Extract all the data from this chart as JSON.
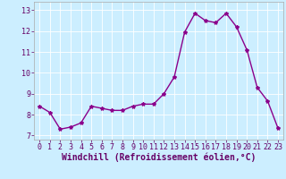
{
  "x": [
    0,
    1,
    2,
    3,
    4,
    5,
    6,
    7,
    8,
    9,
    10,
    11,
    12,
    13,
    14,
    15,
    16,
    17,
    18,
    19,
    20,
    21,
    22,
    23
  ],
  "y": [
    8.4,
    8.1,
    7.3,
    7.4,
    7.6,
    8.4,
    8.3,
    8.2,
    8.2,
    8.4,
    8.5,
    8.5,
    9.0,
    9.8,
    11.95,
    12.85,
    12.5,
    12.4,
    12.85,
    12.2,
    11.1,
    9.3,
    8.65,
    7.35
  ],
  "line_color": "#8b008b",
  "marker": "*",
  "marker_size": 3,
  "bg_color": "#cceeff",
  "grid_color": "#ffffff",
  "xlabel": "Windchill (Refroidissement éolien,°C)",
  "xlabel_fontsize": 7,
  "xlabel_color": "#660066",
  "xticks": [
    0,
    1,
    2,
    3,
    4,
    5,
    6,
    7,
    8,
    9,
    10,
    11,
    12,
    13,
    14,
    15,
    16,
    17,
    18,
    19,
    20,
    21,
    22,
    23
  ],
  "yticks": [
    7,
    8,
    9,
    10,
    11,
    12,
    13
  ],
  "ylim": [
    6.8,
    13.4
  ],
  "xlim": [
    -0.5,
    23.5
  ],
  "tick_fontsize": 6,
  "tick_color": "#660066",
  "linewidth": 1.0,
  "spine_color": "#aaaaaa"
}
